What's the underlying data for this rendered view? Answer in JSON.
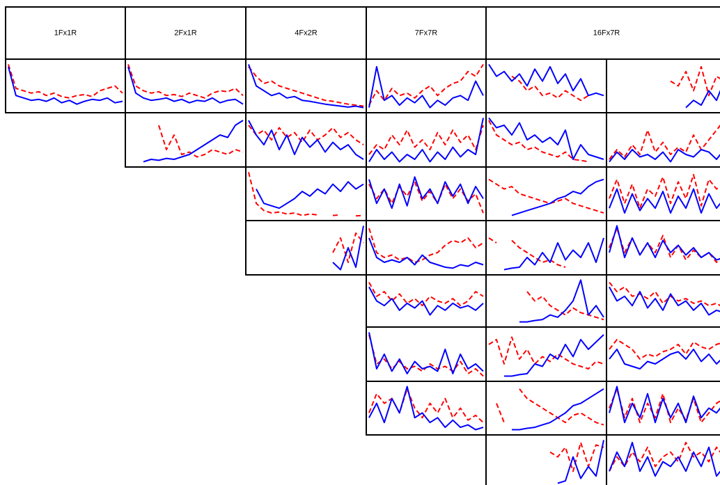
{
  "chart_data": {
    "type": "line",
    "columns": [
      "1Fx1R",
      "2Fx1R",
      "4Fx2R",
      "7Fx7R",
      "16Fx7R"
    ],
    "series_colors": [
      "#ff0000",
      "#0000ff"
    ],
    "series_dashed": [
      true,
      false
    ],
    "ylim": [
      0,
      100
    ],
    "rows": [
      [
        [
          [
            95,
            45,
            40,
            35,
            38,
            30,
            35,
            28,
            25,
            30,
            32,
            28,
            40,
            45,
            50,
            35
          ],
          [
            90,
            30,
            25,
            20,
            22,
            18,
            25,
            15,
            20,
            12,
            18,
            22,
            20,
            25,
            15,
            18
          ]
        ],
        [
          [
            95,
            50,
            40,
            35,
            38,
            30,
            32,
            28,
            35,
            30,
            25,
            35,
            40,
            38,
            45,
            30
          ],
          [
            90,
            35,
            25,
            20,
            22,
            25,
            18,
            22,
            15,
            20,
            18,
            25,
            15,
            20,
            22,
            12
          ]
        ],
        [
          [
            90,
            70,
            55,
            60,
            50,
            45,
            40,
            35,
            30,
            25,
            20,
            18,
            15,
            12,
            10,
            8
          ],
          [
            95,
            50,
            40,
            30,
            35,
            25,
            28,
            20,
            18,
            15,
            12,
            10,
            8,
            6,
            8,
            5
          ]
        ],
        [
          [
            10,
            40,
            20,
            45,
            30,
            35,
            25,
            40,
            50,
            30,
            45,
            55,
            60,
            80,
            70,
            95
          ],
          [
            5,
            90,
            20,
            30,
            10,
            25,
            15,
            30,
            5,
            20,
            10,
            25,
            30,
            20,
            60,
            30
          ]
        ],
        [
          [
            null,
            null,
            null,
            70,
            60,
            40,
            50,
            30,
            35,
            25,
            40,
            30,
            20,
            30,
            null,
            null
          ],
          [
            95,
            70,
            80,
            60,
            75,
            50,
            85,
            60,
            90,
            55,
            75,
            40,
            65,
            30,
            35,
            30
          ]
        ],
        [
          [
            null,
            null,
            null,
            null,
            null,
            null,
            null,
            null,
            60,
            50,
            80,
            40,
            90,
            30,
            70,
            60
          ],
          [
            null,
            null,
            null,
            null,
            null,
            null,
            null,
            null,
            null,
            null,
            5,
            20,
            10,
            40,
            20,
            60
          ]
        ]
      ],
      [
        null,
        [
          [
            null,
            null,
            null,
            null,
            80,
            30,
            60,
            20,
            25,
            15,
            20,
            30,
            25,
            20,
            30,
            25
          ],
          [
            null,
            null,
            5,
            10,
            8,
            12,
            10,
            15,
            20,
            30,
            40,
            50,
            60,
            55,
            80,
            90
          ]
        ],
        [
          [
            80,
            60,
            70,
            50,
            75,
            55,
            65,
            45,
            70,
            50,
            60,
            75,
            55,
            65,
            50,
            40
          ],
          [
            90,
            60,
            40,
            70,
            30,
            60,
            20,
            55,
            35,
            50,
            25,
            45,
            30,
            40,
            20,
            10
          ]
        ],
        [
          [
            20,
            40,
            30,
            60,
            40,
            70,
            35,
            50,
            30,
            65,
            40,
            70,
            45,
            60,
            30,
            80
          ],
          [
            5,
            30,
            10,
            25,
            5,
            20,
            10,
            30,
            5,
            25,
            10,
            35,
            15,
            30,
            20,
            95
          ]
        ],
        [
          [
            90,
            60,
            50,
            40,
            45,
            30,
            35,
            25,
            20,
            15,
            25,
            10,
            8,
            5,
            null,
            null
          ],
          [
            95,
            75,
            80,
            60,
            85,
            50,
            60,
            45,
            55,
            40,
            70,
            10,
            40,
            20,
            15,
            10
          ]
        ],
        [
          [
            10,
            30,
            15,
            40,
            20,
            70,
            25,
            45,
            20,
            35,
            25,
            60,
            30,
            50,
            70,
            90
          ],
          [
            5,
            25,
            10,
            30,
            15,
            20,
            10,
            25,
            5,
            30,
            20,
            15,
            30,
            25,
            10,
            30
          ]
        ]
      ],
      [
        null,
        null,
        [
          [
            95,
            30,
            15,
            10,
            12,
            8,
            10,
            5,
            8,
            6,
            null,
            5,
            6,
            null,
            4,
            5
          ],
          [
            null,
            60,
            30,
            25,
            20,
            30,
            40,
            55,
            45,
            60,
            50,
            70,
            55,
            75,
            60,
            70
          ]
        ],
        [
          [
            70,
            40,
            60,
            30,
            65,
            45,
            75,
            35,
            55,
            30,
            70,
            40,
            60,
            35,
            50,
            10
          ],
          [
            80,
            30,
            60,
            20,
            70,
            25,
            85,
            40,
            60,
            30,
            75,
            45,
            70,
            30,
            65,
            40
          ]
        ],
        [
          [
            80,
            70,
            60,
            65,
            50,
            45,
            40,
            35,
            30,
            35,
            40,
            30,
            25,
            20,
            15,
            10
          ],
          [
            null,
            null,
            null,
            5,
            10,
            15,
            20,
            25,
            30,
            40,
            45,
            55,
            50,
            65,
            75,
            80
          ]
        ],
        [
          [
            40,
            80,
            30,
            70,
            20,
            60,
            45,
            85,
            30,
            75,
            40,
            90,
            25,
            80,
            60,
            70
          ],
          [
            20,
            60,
            10,
            50,
            15,
            40,
            20,
            55,
            10,
            45,
            20,
            60,
            10,
            50,
            20,
            40
          ]
        ]
      ],
      [
        null,
        null,
        [
          [
            null,
            null,
            null,
            null,
            null,
            null,
            null,
            null,
            null,
            null,
            null,
            40,
            70,
            20,
            80,
            60
          ],
          [
            null,
            null,
            null,
            null,
            null,
            null,
            null,
            null,
            null,
            null,
            null,
            20,
            5,
            50,
            10,
            95
          ]
        ],
        [
          [
            90,
            40,
            30,
            35,
            25,
            30,
            20,
            25,
            35,
            40,
            55,
            65,
            60,
            70,
            50,
            60
          ],
          [
            70,
            30,
            20,
            25,
            20,
            30,
            15,
            35,
            20,
            15,
            10,
            8,
            15,
            12,
            20,
            15
          ]
        ],
        [
          [
            70,
            60,
            null,
            65,
            50,
            40,
            30,
            20,
            25,
            15,
            10,
            null,
            null,
            null,
            null,
            null
          ],
          [
            null,
            null,
            5,
            8,
            10,
            30,
            15,
            40,
            20,
            60,
            25,
            45,
            30,
            60,
            20,
            70
          ]
        ],
        [
          [
            50,
            90,
            40,
            70,
            35,
            60,
            40,
            75,
            30,
            55,
            25,
            45,
            30,
            40,
            20,
            35
          ],
          [
            40,
            95,
            30,
            70,
            35,
            60,
            30,
            65,
            40,
            55,
            35,
            50,
            30,
            40,
            25,
            30
          ]
        ]
      ],
      [
        null,
        null,
        null,
        [
          [
            90,
            60,
            70,
            50,
            65,
            45,
            55,
            40,
            60,
            50,
            45,
            55,
            40,
            50,
            70,
            60
          ],
          [
            80,
            50,
            40,
            55,
            30,
            45,
            35,
            50,
            20,
            40,
            30,
            45,
            35,
            40,
            30,
            45
          ]
        ],
        [
          [
            null,
            null,
            null,
            null,
            null,
            70,
            50,
            60,
            40,
            30,
            20,
            35,
            25,
            20,
            15,
            10
          ],
          [
            null,
            null,
            null,
            null,
            5,
            5,
            8,
            10,
            20,
            15,
            30,
            50,
            95,
            20,
            40,
            15
          ]
        ],
        [
          [
            90,
            70,
            80,
            60,
            65,
            55,
            70,
            45,
            60,
            50,
            55,
            45,
            50,
            40,
            45,
            35
          ],
          [
            80,
            50,
            60,
            40,
            70,
            35,
            55,
            30,
            65,
            40,
            50,
            30,
            45,
            20,
            30,
            25
          ]
        ]
      ],
      [
        null,
        null,
        null,
        [
          [
            90,
            30,
            40,
            20,
            35,
            20,
            25,
            15,
            30,
            20,
            25,
            15,
            35,
            10,
            20,
            5
          ],
          [
            95,
            20,
            50,
            15,
            40,
            10,
            35,
            20,
            25,
            15,
            60,
            10,
            50,
            20,
            30,
            15
          ]
        ],
        [
          [
            70,
            80,
            30,
            85,
            40,
            60,
            30,
            45,
            35,
            50,
            40,
            30,
            25,
            20,
            35,
            30
          ],
          [
            null,
            null,
            5,
            5,
            8,
            10,
            30,
            25,
            50,
            40,
            70,
            45,
            80,
            60,
            75,
            90
          ]
        ],
        [
          [
            60,
            80,
            70,
            60,
            40,
            50,
            45,
            55,
            60,
            70,
            50,
            75,
            65,
            60,
            70,
            75
          ],
          [
            40,
            60,
            30,
            25,
            20,
            35,
            30,
            40,
            50,
            55,
            40,
            60,
            35,
            50,
            30,
            45
          ]
        ]
      ],
      [
        null,
        null,
        null,
        [
          [
            40,
            80,
            60,
            70,
            40,
            90,
            50,
            30,
            60,
            40,
            70,
            30,
            50,
            25,
            35,
            20
          ],
          [
            30,
            60,
            20,
            70,
            40,
            95,
            30,
            40,
            20,
            30,
            10,
            25,
            10,
            15,
            5,
            10
          ]
        ],
        [
          [
            null,
            60,
            20,
            null,
            90,
            70,
            60,
            50,
            40,
            30,
            20,
            35,
            40,
            30,
            20,
            15
          ],
          [
            null,
            null,
            null,
            5,
            5,
            8,
            10,
            15,
            20,
            30,
            40,
            55,
            60,
            70,
            80,
            90
          ]
        ],
        [
          [
            50,
            90,
            30,
            70,
            20,
            60,
            30,
            80,
            20,
            50,
            25,
            70,
            20,
            40,
            60,
            70
          ],
          [
            40,
            95,
            20,
            60,
            30,
            80,
            20,
            70,
            30,
            60,
            20,
            75,
            30,
            50,
            40,
            60
          ]
        ]
      ],
      [
        null,
        null,
        null,
        null,
        [
          [
            null,
            null,
            null,
            null,
            null,
            null,
            null,
            null,
            70,
            60,
            80,
            30,
            90,
            40,
            85,
            80
          ],
          [
            null,
            null,
            null,
            null,
            null,
            null,
            null,
            null,
            null,
            5,
            10,
            60,
            15,
            40,
            20,
            95
          ]
        ],
        [
          [
            30,
            60,
            40,
            70,
            50,
            80,
            40,
            60,
            70,
            50,
            90,
            60,
            70,
            50,
            80,
            60
          ],
          [
            30,
            70,
            40,
            90,
            30,
            60,
            20,
            50,
            40,
            60,
            30,
            70,
            40,
            80,
            20,
            40
          ]
        ]
      ]
    ]
  }
}
